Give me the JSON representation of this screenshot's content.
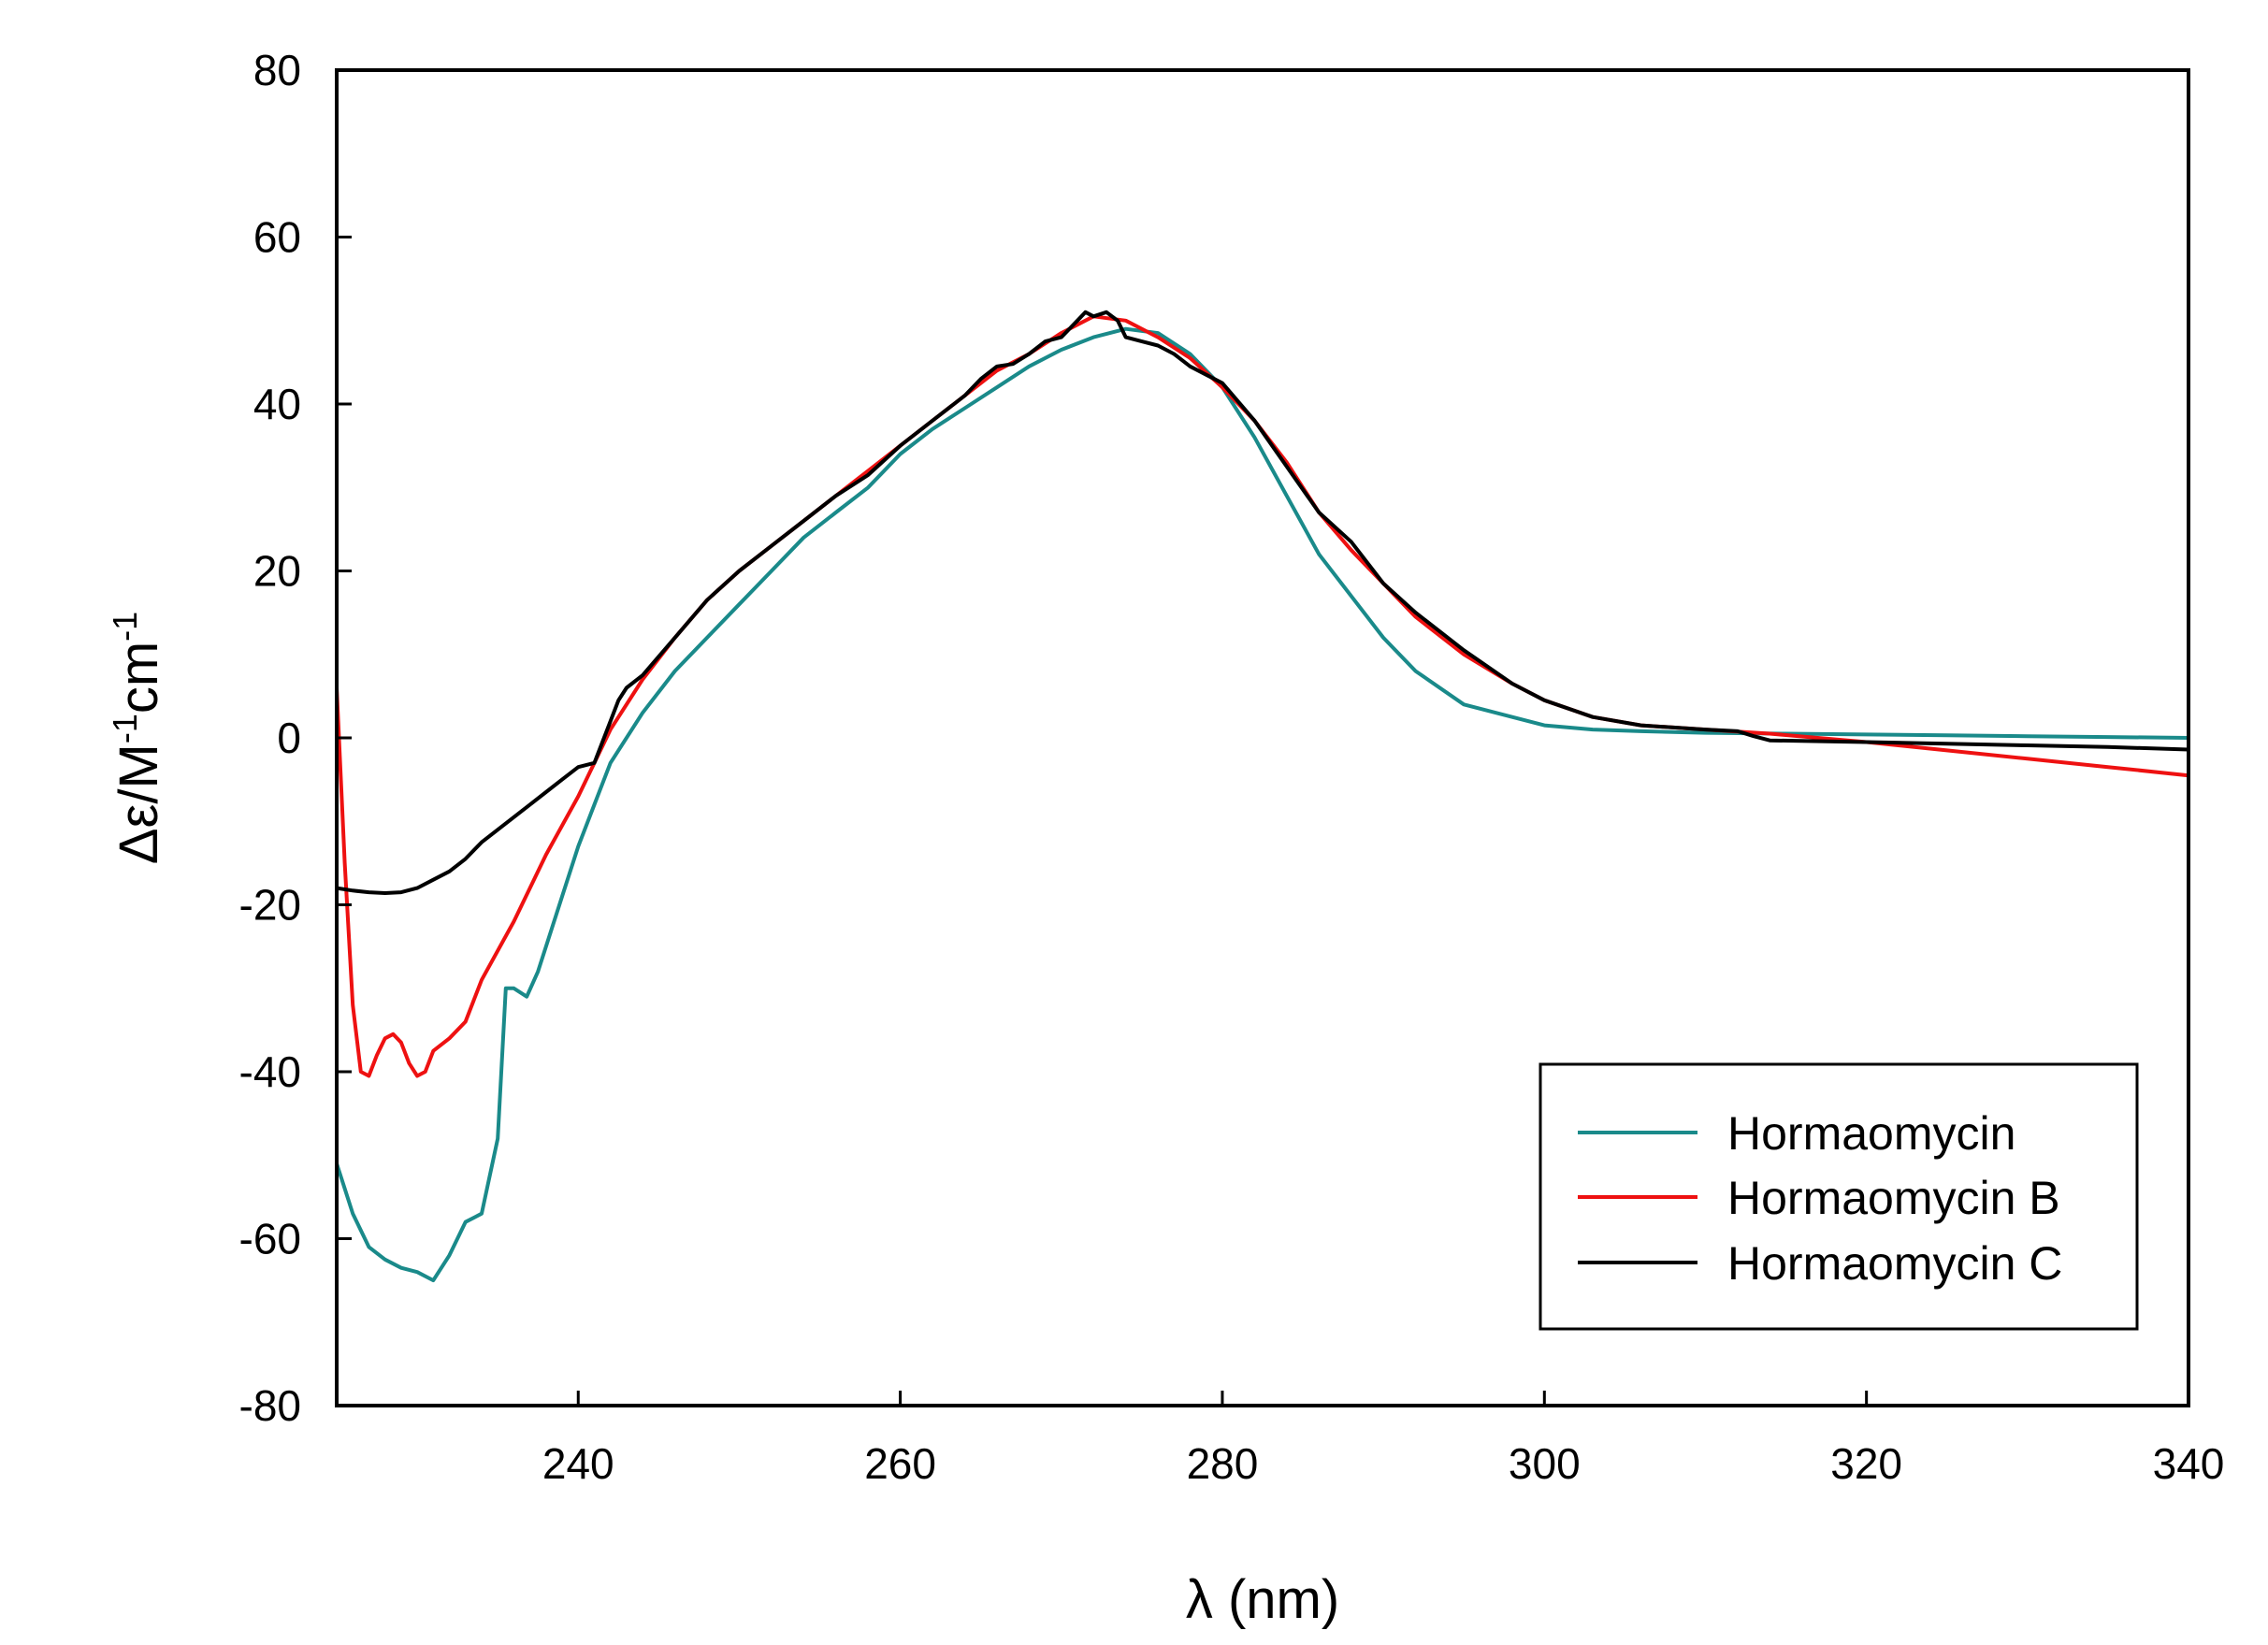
{
  "chart_data": {
    "type": "line",
    "title": "",
    "xlabel": "λ (nm)",
    "ylabel": {
      "prefix": "Δε/M",
      "sup1": "-1",
      "mid": "cm",
      "sup2": "-1"
    },
    "xlim": [
      225,
      340
    ],
    "ylim": [
      -80,
      80
    ],
    "xticks": [
      240,
      260,
      280,
      300,
      320,
      340
    ],
    "yticks": [
      80,
      60,
      40,
      20,
      0,
      -20,
      -40,
      -60,
      -80
    ],
    "xtick_labels": [
      "240",
      "260",
      "280",
      "300",
      "320",
      "340"
    ],
    "ytick_labels": [
      "80",
      "60",
      "40",
      "20",
      "0",
      "-20",
      "-40",
      "-60",
      "-80"
    ],
    "grid": false,
    "legend_position": "bottom-right",
    "series": [
      {
        "name": "Hormaomycin",
        "color": "#1a8a8a",
        "points": [
          [
            225,
            -51
          ],
          [
            226,
            -57
          ],
          [
            227,
            -61
          ],
          [
            228,
            -62.5
          ],
          [
            229,
            -63.5
          ],
          [
            230,
            -64
          ],
          [
            231,
            -65
          ],
          [
            232,
            -62
          ],
          [
            233,
            -58
          ],
          [
            234,
            -57
          ],
          [
            235,
            -48
          ],
          [
            235.5,
            -30
          ],
          [
            236,
            -30
          ],
          [
            236.8,
            -31
          ],
          [
            237.5,
            -28
          ],
          [
            239,
            -19
          ],
          [
            240,
            -13
          ],
          [
            241,
            -8
          ],
          [
            242,
            -3
          ],
          [
            244,
            3
          ],
          [
            246,
            8
          ],
          [
            248,
            12
          ],
          [
            250,
            16
          ],
          [
            252,
            20
          ],
          [
            254,
            24
          ],
          [
            256,
            27
          ],
          [
            258,
            30
          ],
          [
            260,
            34
          ],
          [
            262,
            37
          ],
          [
            264,
            39.5
          ],
          [
            266,
            42
          ],
          [
            268,
            44.5
          ],
          [
            270,
            46.5
          ],
          [
            272,
            48
          ],
          [
            274,
            49
          ],
          [
            276,
            48.5
          ],
          [
            278,
            46
          ],
          [
            280,
            42
          ],
          [
            282,
            36
          ],
          [
            284,
            29
          ],
          [
            286,
            22
          ],
          [
            288,
            17
          ],
          [
            290,
            12
          ],
          [
            292,
            8
          ],
          [
            295,
            4
          ],
          [
            298,
            2.5
          ],
          [
            300,
            1.5
          ],
          [
            303,
            1
          ],
          [
            306,
            0.8
          ],
          [
            310,
            0.6
          ],
          [
            315,
            0.5
          ],
          [
            320,
            0.4
          ],
          [
            325,
            0.3
          ],
          [
            330,
            0.2
          ],
          [
            335,
            0.1
          ],
          [
            340,
            0
          ]
        ]
      },
      {
        "name": "Hormaomycin B",
        "color": "#ee1111",
        "points": [
          [
            225,
            6
          ],
          [
            225.5,
            -15
          ],
          [
            226,
            -32
          ],
          [
            226.5,
            -40
          ],
          [
            227,
            -40.5
          ],
          [
            227.5,
            -38
          ],
          [
            228,
            -36
          ],
          [
            228.5,
            -35.5
          ],
          [
            229,
            -36.5
          ],
          [
            229.5,
            -39
          ],
          [
            230,
            -40.5
          ],
          [
            230.5,
            -40
          ],
          [
            231,
            -37.5
          ],
          [
            232,
            -36
          ],
          [
            233,
            -34
          ],
          [
            234,
            -29
          ],
          [
            236,
            -22
          ],
          [
            238,
            -14
          ],
          [
            240,
            -7
          ],
          [
            242,
            1
          ],
          [
            244,
            7
          ],
          [
            246,
            12
          ],
          [
            248,
            16.5
          ],
          [
            250,
            20
          ],
          [
            252,
            23
          ],
          [
            254,
            26
          ],
          [
            256,
            29
          ],
          [
            258,
            32
          ],
          [
            260,
            35
          ],
          [
            262,
            38
          ],
          [
            264,
            41
          ],
          [
            266,
            44
          ],
          [
            268,
            46
          ],
          [
            270,
            48.5
          ],
          [
            272,
            50.5
          ],
          [
            274,
            50
          ],
          [
            276,
            48
          ],
          [
            278,
            45.5
          ],
          [
            280,
            42
          ],
          [
            282,
            38
          ],
          [
            284,
            33
          ],
          [
            286,
            27
          ],
          [
            288,
            22.5
          ],
          [
            290,
            18.5
          ],
          [
            292,
            14.5
          ],
          [
            295,
            10
          ],
          [
            298,
            6.5
          ],
          [
            300,
            4.5
          ],
          [
            303,
            2.5
          ],
          [
            306,
            1.5
          ],
          [
            310,
            1
          ],
          [
            314,
            0.5
          ],
          [
            320,
            -0.5
          ],
          [
            325,
            -1.5
          ],
          [
            330,
            -2.5
          ],
          [
            335,
            -3.5
          ],
          [
            340,
            -4.5
          ]
        ]
      },
      {
        "name": "Hormaomycin C",
        "color": "#000000",
        "points": [
          [
            225,
            -18
          ],
          [
            226,
            -18.3
          ],
          [
            227,
            -18.5
          ],
          [
            228,
            -18.6
          ],
          [
            229,
            -18.5
          ],
          [
            230,
            -18
          ],
          [
            231,
            -17
          ],
          [
            232,
            -16
          ],
          [
            233,
            -14.5
          ],
          [
            234,
            -12.5
          ],
          [
            235,
            -11
          ],
          [
            236,
            -9.5
          ],
          [
            237,
            -8
          ],
          [
            238,
            -6.5
          ],
          [
            239,
            -5
          ],
          [
            240,
            -3.5
          ],
          [
            241,
            -3
          ],
          [
            242,
            2
          ],
          [
            242.5,
            4.5
          ],
          [
            243,
            6
          ],
          [
            244,
            7.5
          ],
          [
            246,
            12
          ],
          [
            248,
            16.5
          ],
          [
            250,
            20
          ],
          [
            252,
            23
          ],
          [
            254,
            26
          ],
          [
            256,
            29
          ],
          [
            258,
            31.5
          ],
          [
            260,
            35
          ],
          [
            262,
            38
          ],
          [
            264,
            41
          ],
          [
            265,
            43
          ],
          [
            266,
            44.5
          ],
          [
            267,
            44.8
          ],
          [
            268,
            46
          ],
          [
            269,
            47.5
          ],
          [
            270,
            48
          ],
          [
            271,
            50
          ],
          [
            271.5,
            51
          ],
          [
            272,
            50.5
          ],
          [
            272.8,
            51
          ],
          [
            273.5,
            50
          ],
          [
            274,
            48
          ],
          [
            275,
            47.5
          ],
          [
            276,
            47
          ],
          [
            277,
            46
          ],
          [
            278,
            44.5
          ],
          [
            280,
            42.5
          ],
          [
            282,
            38
          ],
          [
            284,
            32.5
          ],
          [
            286,
            27
          ],
          [
            288,
            23.5
          ],
          [
            290,
            18.5
          ],
          [
            292,
            15
          ],
          [
            295,
            10.5
          ],
          [
            298,
            6.5
          ],
          [
            300,
            4.5
          ],
          [
            303,
            2.5
          ],
          [
            306,
            1.5
          ],
          [
            310,
            1
          ],
          [
            312,
            0.8
          ],
          [
            313,
            0.2
          ],
          [
            314,
            -0.3
          ],
          [
            320,
            -0.5
          ],
          [
            325,
            -0.7
          ],
          [
            330,
            -0.9
          ],
          [
            335,
            -1.1
          ],
          [
            340,
            -1.4
          ]
        ]
      }
    ]
  }
}
